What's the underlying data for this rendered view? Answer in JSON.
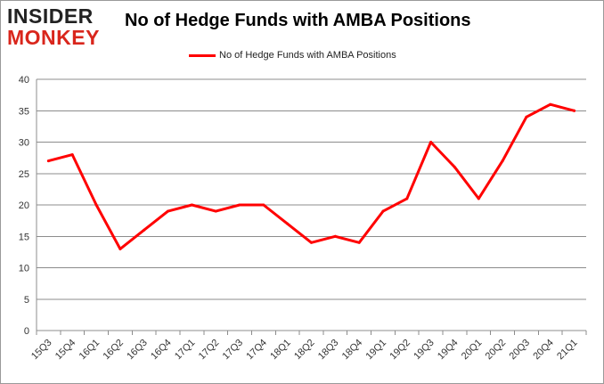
{
  "logo": {
    "line1": "INSIDER",
    "line2": "MONKEY"
  },
  "chart_data": {
    "type": "line",
    "title": "No of Hedge Funds with AMBA Positions",
    "xlabel": "",
    "ylabel": "",
    "categories": [
      "15Q3",
      "15Q4",
      "16Q1",
      "16Q2",
      "16Q3",
      "16Q4",
      "17Q1",
      "17Q2",
      "17Q3",
      "17Q4",
      "18Q1",
      "18Q2",
      "18Q3",
      "18Q4",
      "19Q1",
      "19Q2",
      "19Q3",
      "19Q4",
      "20Q1",
      "20Q2",
      "20Q3",
      "20Q4",
      "21Q1"
    ],
    "series": [
      {
        "name": "No of Hedge Funds with AMBA Positions",
        "values": [
          27,
          28,
          20,
          13,
          16,
          19,
          20,
          19,
          20,
          20,
          17,
          14,
          15,
          14,
          19,
          21,
          30,
          26,
          21,
          27,
          34,
          36,
          35
        ]
      }
    ],
    "ylim": [
      0,
      40
    ],
    "yticks": [
      0,
      5,
      10,
      15,
      20,
      25,
      30,
      35,
      40
    ],
    "grid": true,
    "legend_position": "top-center",
    "line_color": "#ff0000"
  }
}
